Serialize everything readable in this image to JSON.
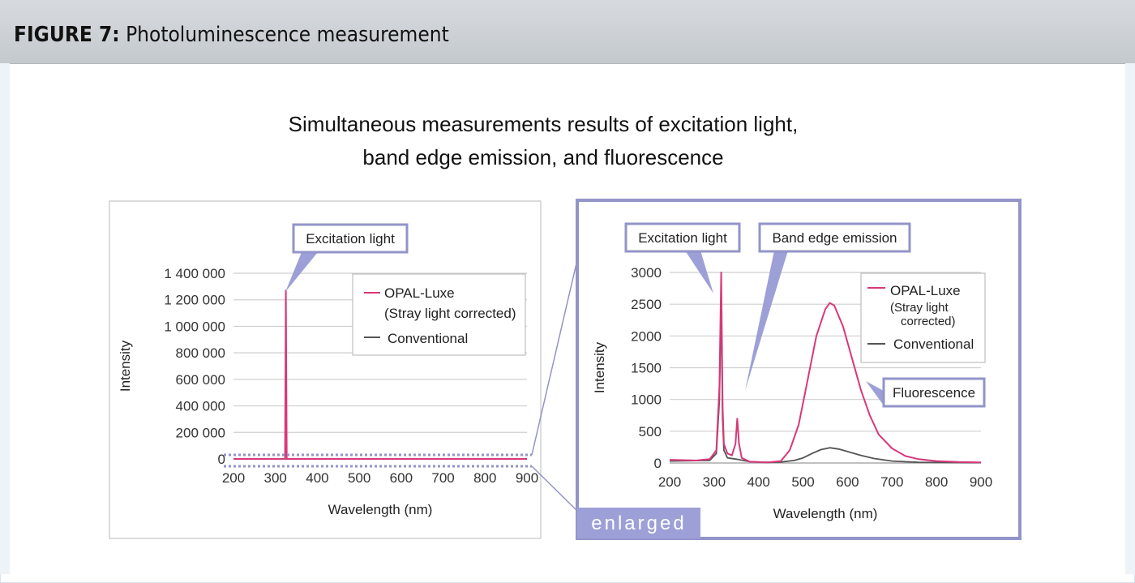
{
  "figure": {
    "label": "FIGURE 7:",
    "caption": "Photoluminescence measurement",
    "title_line1": "Simultaneous measurements results of excitation light,",
    "title_line2": "band edge emission, and fluorescence"
  },
  "colors": {
    "opal": "#d8387a",
    "conventional": "#555555",
    "callout_border": "#9394c8",
    "callout_fill": "#9da0d6",
    "grid": "#cfcfcf",
    "header_bg": "#cbd0d5"
  },
  "chart_data": [
    {
      "type": "line",
      "ylabel": "Intensity",
      "xlabel": "Wavelength (nm)",
      "xlim": [
        200,
        900
      ],
      "ylim": [
        0,
        1400000
      ],
      "xticks": [
        "200",
        "300",
        "400",
        "500",
        "600",
        "700",
        "800",
        "900"
      ],
      "yticks": [
        "0",
        "200 000",
        "400 000",
        "600 000",
        "800 000",
        "1 000 000",
        "1 200 000",
        "1 400 000"
      ],
      "legend": {
        "opal": "OPAL-Luxe",
        "opal_note": "(Stray light corrected)",
        "conventional": "Conventional"
      },
      "callout": "Excitation light",
      "series": [
        {
          "name": "OPAL-Luxe",
          "points": [
            [
              200,
              0
            ],
            [
              320,
              0
            ],
            [
              323,
              2000
            ],
            [
              325,
              1270000
            ],
            [
              327,
              2000
            ],
            [
              330,
              0
            ],
            [
              900,
              0
            ]
          ]
        },
        {
          "name": "Conventional",
          "points": [
            [
              200,
              0
            ],
            [
              900,
              0
            ]
          ]
        }
      ]
    },
    {
      "type": "line",
      "ylabel": "Intensity",
      "xlabel": "Wavelength (nm)",
      "xlim": [
        200,
        900
      ],
      "ylim": [
        0,
        3000
      ],
      "xticks": [
        "200",
        "300",
        "400",
        "500",
        "600",
        "700",
        "800",
        "900"
      ],
      "yticks": [
        "0",
        "500",
        "1000",
        "1500",
        "2000",
        "2500",
        "3000"
      ],
      "legend": {
        "opal": "OPAL-Luxe",
        "opal_note_1": "(Stray light",
        "opal_note_2": "corrected)",
        "conventional": "Conventional"
      },
      "callouts": {
        "excitation": "Excitation light",
        "band_edge": "Band edge emission",
        "fluorescence": "Fluorescence"
      },
      "tag": "enlarged",
      "series": [
        {
          "name": "OPAL-Luxe",
          "points": [
            [
              200,
              50
            ],
            [
              260,
              40
            ],
            [
              290,
              60
            ],
            [
              305,
              200
            ],
            [
              312,
              1200
            ],
            [
              316,
              3000
            ],
            [
              319,
              900
            ],
            [
              322,
              300
            ],
            [
              330,
              150
            ],
            [
              340,
              120
            ],
            [
              348,
              300
            ],
            [
              352,
              700
            ],
            [
              356,
              300
            ],
            [
              362,
              80
            ],
            [
              380,
              20
            ],
            [
              420,
              10
            ],
            [
              450,
              30
            ],
            [
              470,
              200
            ],
            [
              490,
              600
            ],
            [
              510,
              1300
            ],
            [
              530,
              2000
            ],
            [
              550,
              2420
            ],
            [
              560,
              2520
            ],
            [
              570,
              2480
            ],
            [
              590,
              2150
            ],
            [
              610,
              1650
            ],
            [
              630,
              1150
            ],
            [
              650,
              750
            ],
            [
              670,
              450
            ],
            [
              700,
              230
            ],
            [
              730,
              110
            ],
            [
              760,
              60
            ],
            [
              800,
              30
            ],
            [
              850,
              15
            ],
            [
              900,
              10
            ]
          ]
        },
        {
          "name": "Conventional",
          "points": [
            [
              200,
              30
            ],
            [
              290,
              40
            ],
            [
              305,
              150
            ],
            [
              312,
              1000
            ],
            [
              316,
              2600
            ],
            [
              319,
              700
            ],
            [
              322,
              200
            ],
            [
              330,
              80
            ],
            [
              350,
              60
            ],
            [
              380,
              20
            ],
            [
              420,
              10
            ],
            [
              450,
              15
            ],
            [
              480,
              40
            ],
            [
              500,
              80
            ],
            [
              520,
              150
            ],
            [
              540,
              210
            ],
            [
              560,
              240
            ],
            [
              580,
              220
            ],
            [
              600,
              180
            ],
            [
              630,
              120
            ],
            [
              660,
              70
            ],
            [
              700,
              30
            ],
            [
              760,
              10
            ],
            [
              900,
              5
            ]
          ]
        }
      ]
    }
  ]
}
